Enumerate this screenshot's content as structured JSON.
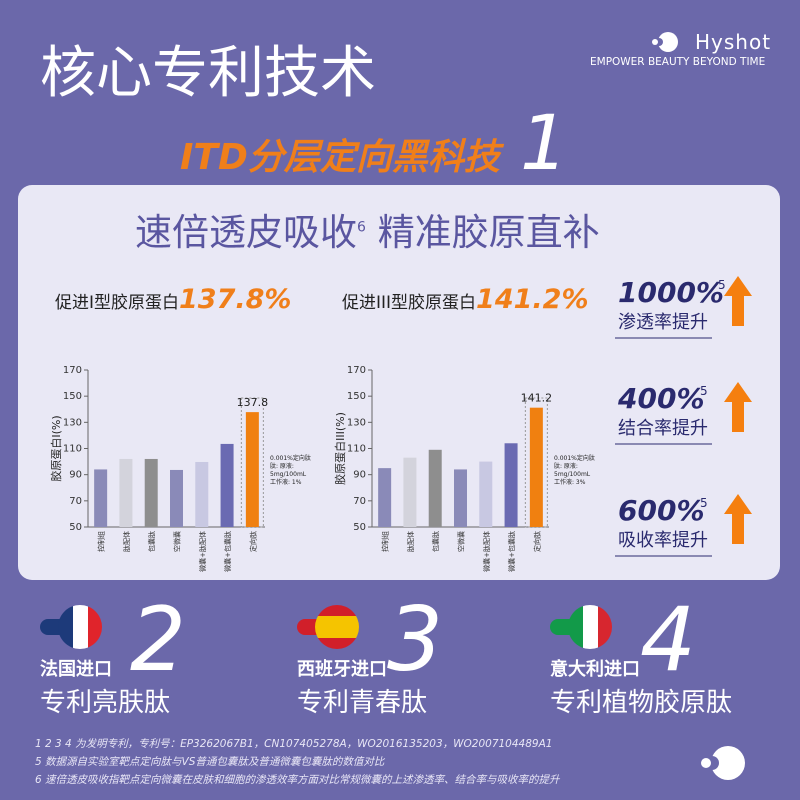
{
  "header": {
    "title": "核心专利技术",
    "brand": "Hyshot",
    "tagline": "EMPOWER BEAUTY BEYOND TIME",
    "subtitle": "ITD分层定向黑科技",
    "number": "1"
  },
  "panel": {
    "heading": "速倍透皮吸收",
    "heading_sup": "6",
    "heading_tail": "精准胶原直补",
    "stats": [
      {
        "label": "促进I型胶原蛋白",
        "value": "137.8%"
      },
      {
        "label": "促进III型胶原蛋白",
        "value": "141.2%"
      }
    ],
    "highlights": [
      {
        "value": "1000%",
        "sup": "5",
        "label": "渗透率提升"
      },
      {
        "value": "400%",
        "sup": "5",
        "label": "结合率提升"
      },
      {
        "value": "600%",
        "sup": "5",
        "label": "吸收率提升"
      }
    ]
  },
  "chart_data": [
    {
      "type": "bar",
      "y_label": "胶原蛋白I(%)",
      "categories": [
        "控制组",
        "肽配体",
        "包囊肽",
        "空微囊",
        "微囊+肽配体",
        "微囊+包囊肽",
        "定向肽"
      ],
      "values": [
        94,
        102,
        102,
        93.6,
        99.7,
        113.5,
        137.8
      ],
      "colors": [
        "#8a8ab8",
        "#d3d3dc",
        "#8e8e8e",
        "#8a8ab8",
        "#c8c8e2",
        "#6a6ab2",
        "#f08010"
      ],
      "show_value_label": [
        false,
        false,
        false,
        false,
        false,
        false,
        true
      ],
      "ylim": [
        50,
        170
      ],
      "yticks": [
        50,
        70,
        90,
        110,
        130,
        150,
        170
      ],
      "note": [
        "0.001%定向肽",
        "肽: 原液:",
        "5mg/100mL",
        "工作液: 1%"
      ]
    },
    {
      "type": "bar",
      "y_label": "胶原蛋白III(%)",
      "categories": [
        "控制组",
        "肽配体",
        "包囊肽",
        "空微囊",
        "微囊+肽配体",
        "微囊+包囊肽",
        "定向肽"
      ],
      "values": [
        95,
        103,
        109,
        94,
        100,
        114,
        141.2
      ],
      "colors": [
        "#8a8ab8",
        "#d3d3dc",
        "#8e8e8e",
        "#8a8ab8",
        "#c8c8e2",
        "#6a6ab2",
        "#f08010"
      ],
      "show_value_label": [
        false,
        false,
        false,
        false,
        false,
        false,
        true
      ],
      "ylim": [
        50,
        170
      ],
      "yticks": [
        50,
        70,
        90,
        110,
        130,
        150,
        170
      ],
      "note": [
        "0.001%定向肽",
        "肽: 原液:",
        "5mg/100mL",
        "工作液: 3%"
      ]
    }
  ],
  "imports": [
    {
      "origin": "法国进口",
      "number": "2",
      "name": "专利亮肤肽"
    },
    {
      "origin": "西班牙进口",
      "number": "3",
      "name": "专利青春肽"
    },
    {
      "origin": "意大利进口",
      "number": "4",
      "name": "专利植物胶原肽"
    }
  ],
  "footnotes": [
    "1 2 3 4 为发明专利，专利号：EP3262067B1，CN107405278A，WO2016135203，WO2007104489A1",
    "5  数据源自实验室靶点定向肽与VS普通包囊肽及普通微囊包囊肽的数值对比",
    "6  速倍透皮吸收指靶点定向微囊在皮肤和细胞的渗透效率方面对比常规微囊的上述渗透率、结合率与吸收率的提升"
  ]
}
